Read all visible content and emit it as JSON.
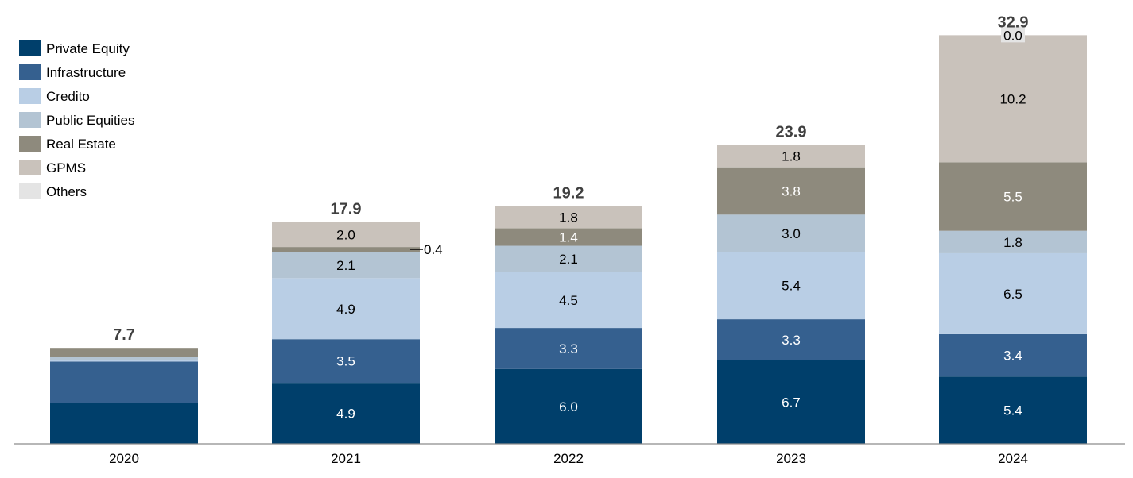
{
  "chart_data": {
    "type": "bar",
    "stacked": true,
    "title": "",
    "xlabel": "",
    "ylabel": "",
    "ylim": [
      0,
      33
    ],
    "grid": false,
    "legend_position": "top-left",
    "categories": [
      "2020",
      "2021",
      "2022",
      "2023",
      "2024"
    ],
    "totals": [
      "7.7",
      "17.9",
      "19.2",
      "23.9",
      "32.9"
    ],
    "series": [
      {
        "name": "Private Equity",
        "color": "#003f6b",
        "text_color": "#ffffff",
        "values": [
          3.3,
          4.9,
          6.0,
          6.7,
          5.4
        ],
        "labels": [
          "",
          "4.9",
          "6.0",
          "6.7",
          "5.4"
        ]
      },
      {
        "name": "Infrastructure",
        "color": "#35608f",
        "text_color": "#ffffff",
        "values": [
          3.3,
          3.5,
          3.3,
          3.3,
          3.4
        ],
        "labels": [
          "",
          "3.5",
          "3.3",
          "3.3",
          "3.4"
        ]
      },
      {
        "name": "Credito",
        "color": "#b9cee5",
        "text_color": "#000000",
        "values": [
          0.1,
          4.9,
          4.5,
          5.4,
          6.5
        ],
        "labels": [
          "",
          "4.9",
          "4.5",
          "5.4",
          "6.5"
        ]
      },
      {
        "name": "Public Equities",
        "color": "#b3c4d3",
        "text_color": "#000000",
        "values": [
          0.3,
          2.1,
          2.1,
          3.0,
          1.8
        ],
        "labels": [
          "",
          "2.1",
          "2.1",
          "3.0",
          "1.8"
        ]
      },
      {
        "name": "Real Estate",
        "color": "#8e8a7d",
        "text_color": "#ffffff",
        "values": [
          0.7,
          0.4,
          1.4,
          3.8,
          5.5
        ],
        "labels": [
          "",
          "0.4",
          "1.4",
          "3.8",
          "5.5"
        ]
      },
      {
        "name": "GPMS",
        "color": "#c9c2bb",
        "text_color": "#000000",
        "values": [
          0.0,
          2.0,
          1.8,
          1.8,
          10.2
        ],
        "labels": [
          "",
          "2.0",
          "1.8",
          "1.8",
          "10.2"
        ]
      },
      {
        "name": "Others",
        "color": "#e4e4e4",
        "text_color": "#000000",
        "values": [
          0.0,
          0.0,
          0.0,
          0.0,
          0.0
        ],
        "labels": [
          "",
          "",
          "",
          "",
          "0.0"
        ]
      }
    ]
  }
}
